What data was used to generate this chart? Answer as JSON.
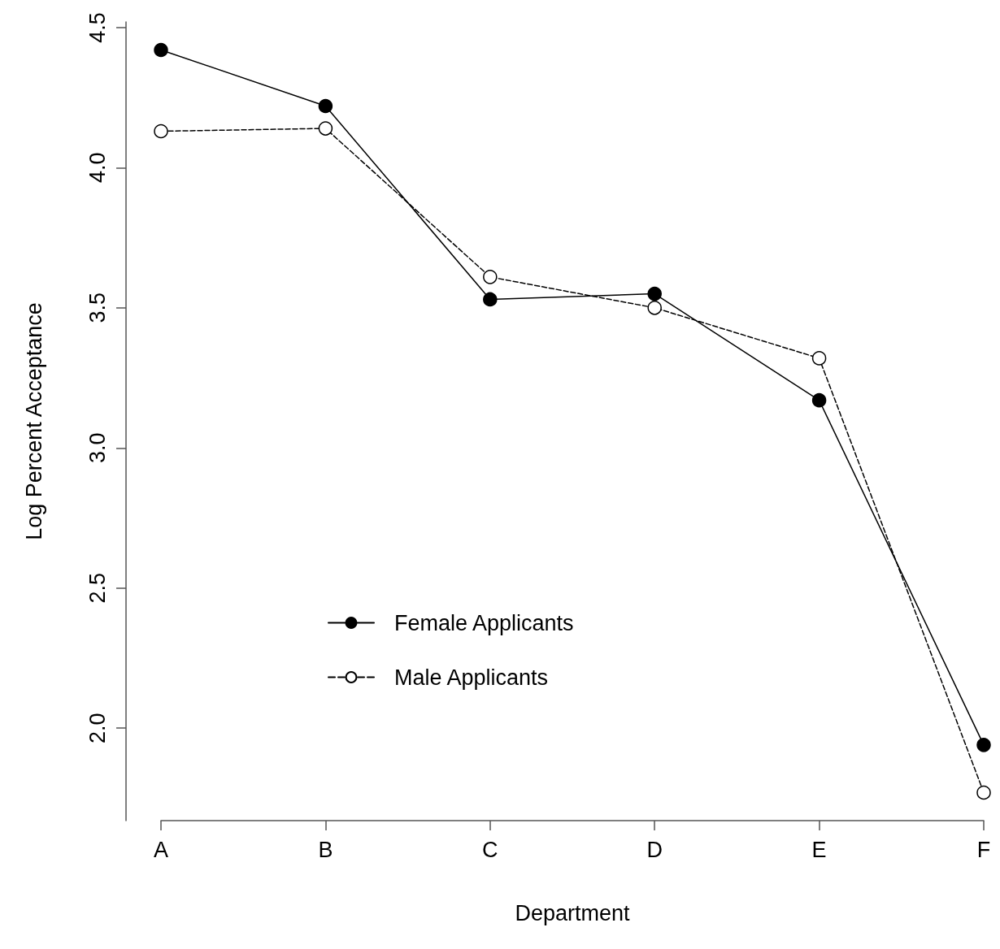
{
  "chart_data": {
    "type": "line",
    "xlabel": "Department",
    "ylabel": "Log Percent Acceptance",
    "categories": [
      "A",
      "B",
      "C",
      "D",
      "E",
      "F"
    ],
    "series": [
      {
        "name": "Female Applicants",
        "color": "#000000",
        "marker": "circle",
        "line_style": "solid",
        "values": [
          4.42,
          4.22,
          3.53,
          3.55,
          3.17,
          1.94
        ]
      },
      {
        "name": "Male Applicants",
        "color": "#000000",
        "marker": "open-circle",
        "line_style": "dashed",
        "values": [
          4.13,
          4.14,
          3.61,
          3.5,
          3.32,
          1.77
        ]
      }
    ],
    "ylim": [
      1.67,
      4.52
    ],
    "yticks": [
      {
        "value": 2,
        "label": "2.0"
      },
      2.5,
      {
        "value": 3,
        "label": "3.0"
      },
      3.5,
      {
        "value": 4,
        "label": "4.0"
      },
      4.5
    ],
    "grid": false,
    "legend": "bottom left"
  }
}
